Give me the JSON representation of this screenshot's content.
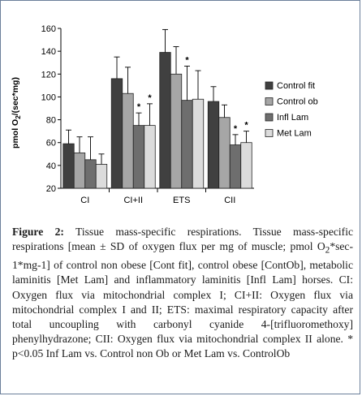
{
  "chart_data": {
    "type": "bar",
    "title": "",
    "xlabel": "",
    "ylabel_prefix": "pmol O",
    "ylabel_sub": "2",
    "ylabel_suffix": "/(sec*mg)",
    "ylim": [
      20,
      160
    ],
    "yticks": [
      "20",
      "40",
      "60",
      "80",
      "100",
      "120",
      "140",
      "160"
    ],
    "categories": [
      "CI",
      "CI+II",
      "ETS",
      "CII"
    ],
    "legend_position": "right",
    "grid": false,
    "significance_marker": "*",
    "series": [
      {
        "name": "Control fit",
        "color": "#404040",
        "values": [
          59,
          116,
          139,
          96
        ],
        "sd": [
          12,
          19,
          20,
          13
        ],
        "significant": [
          false,
          false,
          false,
          false
        ]
      },
      {
        "name": "Control  ob",
        "color": "#a6a6a6",
        "values": [
          51,
          103,
          120,
          82
        ],
        "sd": [
          14,
          23,
          24,
          11
        ],
        "significant": [
          false,
          false,
          false,
          false
        ]
      },
      {
        "name": "Infl Lam",
        "color": "#6e6e6e",
        "values": [
          45,
          75,
          97,
          58
        ],
        "sd": [
          20,
          11,
          30,
          9
        ],
        "significant": [
          false,
          true,
          true,
          true
        ]
      },
      {
        "name": "Met Lam",
        "color": "#dcdcdc",
        "values": [
          41,
          75,
          98,
          60
        ],
        "sd": [
          9,
          19,
          25,
          10
        ],
        "significant": [
          false,
          true,
          false,
          true
        ]
      }
    ]
  },
  "caption": {
    "label": "Figure 2:",
    "text_1": " Tissue mass-specific respirations. Tissue mass-specific respirations [mean ± SD of oxygen flux per mg of muscle; pmol O",
    "sub": "2",
    "text_2": "*sec-1*mg-1] of control non obese [Cont fit], control obese [ContOb], metabolic laminitis [Met Lam] and inflammatory laminitis [Infl Lam] horses. CI: Oxygen flux via mitochondrial complex I; CI+II: Oxygen flux via mitochondrial complex I and II; ETS: maximal respiratory capacity after total uncoupling with carbonyl cyanide 4-[trifluoromethoxy] phenylhydrazone; CII: Oxygen flux via mitochondrial complex II alone. * p<0.05 Inf Lam vs. Control non Ob or Met Lam vs. ControlOb"
  }
}
